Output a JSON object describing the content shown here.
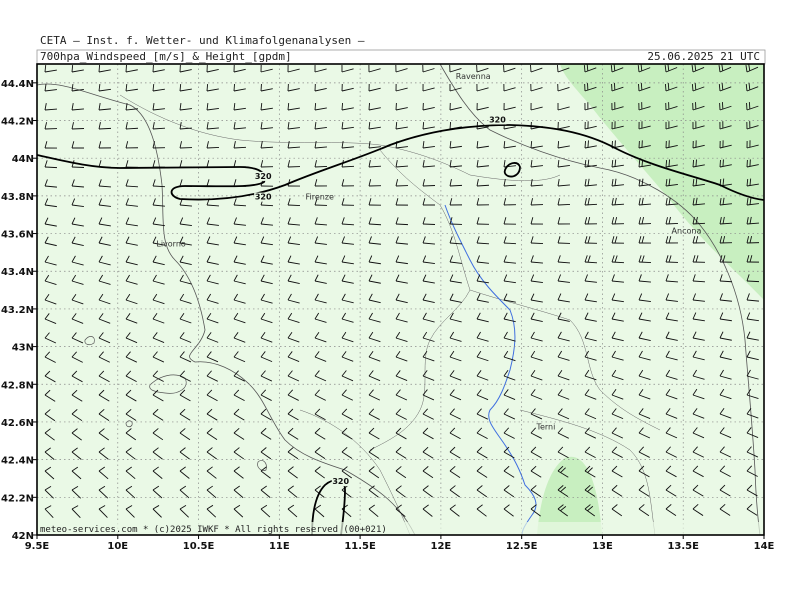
{
  "header": {
    "institute": "CETA — Inst. f. Wetter- und Klimafolgenanalysen —",
    "parameter": "700hpa_Windspeed_[m/s]_&_Height_[gpdm]",
    "valid_time": "25.06.2025 21 UTC"
  },
  "footer": {
    "credit": "meteo-services.com * (c)2025 IWKF * All rights reserved (00+021)"
  },
  "map": {
    "lon_range": [
      9.5,
      14.0
    ],
    "lat_range": [
      42.0,
      44.5
    ],
    "grid": true,
    "x_ticks": [
      "9.5E",
      "10E",
      "10.5E",
      "11E",
      "11.5E",
      "12E",
      "12.5E",
      "13E",
      "13.5E",
      "14E"
    ],
    "y_ticks": [
      "42N",
      "42.2N",
      "42.4N",
      "42.6N",
      "42.8N",
      "43N",
      "43.2N",
      "43.4N",
      "43.6N",
      "43.8N",
      "44N",
      "44.2N",
      "44.4N"
    ],
    "cities": [
      {
        "name": "Ravenna",
        "lon": 12.2,
        "lat": 44.42
      },
      {
        "name": "Firenze",
        "lon": 11.25,
        "lat": 43.78
      },
      {
        "name": "Livorno",
        "lon": 10.33,
        "lat": 43.53
      },
      {
        "name": "Ancona",
        "lon": 13.52,
        "lat": 43.6
      },
      {
        "name": "Terni",
        "lon": 12.65,
        "lat": 42.56
      }
    ],
    "contour_labels": [
      {
        "text": "320",
        "lon": 10.9,
        "lat": 43.89
      },
      {
        "text": "320",
        "lon": 10.9,
        "lat": 43.78
      },
      {
        "text": "320",
        "lon": 12.35,
        "lat": 44.19
      },
      {
        "text": "320",
        "lon": 11.38,
        "lat": 42.27
      }
    ],
    "colors": {
      "background": "#eaf9e6",
      "shade_strong": "#c8efc0",
      "coast": "#555555",
      "river": "#3f6fe0",
      "contour": "#000000",
      "grid": "#888888"
    }
  }
}
